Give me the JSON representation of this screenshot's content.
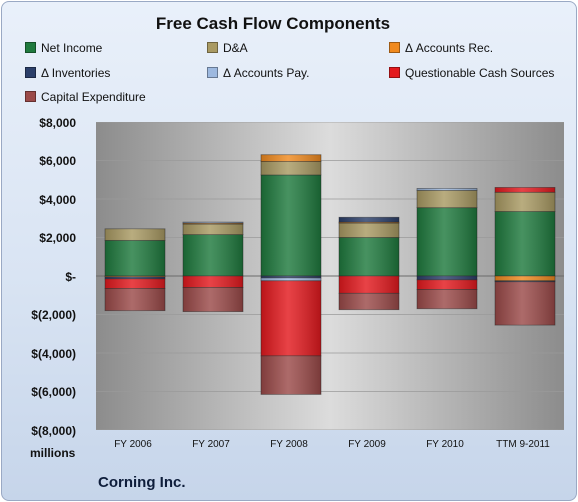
{
  "chart_data": {
    "type": "bar",
    "stacked": true,
    "title": "Free Cash Flow Components",
    "categories": [
      "FY 2006",
      "FY 2007",
      "FY 2008",
      "FY 2009",
      "FY 2010",
      "TTM 9-2011"
    ],
    "unit_label": "millions",
    "company": "Corning Inc.",
    "ylim": [
      -8000,
      8000
    ],
    "yticks": [
      "$8,000",
      "$6,000",
      "$4,000",
      "$2,000",
      "$-",
      "$(2,000)",
      "$(4,000)",
      "$(6,000)",
      "$(8,000)"
    ],
    "ytick_values": [
      8000,
      6000,
      4000,
      2000,
      0,
      -2000,
      -4000,
      -6000,
      -8000
    ],
    "grid": true,
    "legend_position": "top",
    "series": [
      {
        "name": "Net Income",
        "color": "#1f7a3e",
        "values": [
          1850,
          2150,
          5250,
          2000,
          3550,
          3350
        ]
      },
      {
        "name": "D&A",
        "color": "#a99a63",
        "values": [
          600,
          550,
          700,
          750,
          900,
          1000
        ]
      },
      {
        "name": "Δ Accounts Rec.",
        "color": "#f08a1f",
        "values": [
          -50,
          50,
          350,
          50,
          0,
          -250
        ]
      },
      {
        "name": "Δ Inventories",
        "color": "#2b3f6a",
        "values": [
          -100,
          0,
          -100,
          250,
          -200,
          -50
        ]
      },
      {
        "name": "Δ Accounts Pay.",
        "color": "#9db9e0",
        "values": [
          0,
          50,
          -150,
          0,
          100,
          0
        ]
      },
      {
        "name": "Questionable Cash Sources",
        "color": "#e3191e",
        "values": [
          -500,
          -600,
          -3900,
          -900,
          -500,
          250
        ]
      },
      {
        "name": "Capital Expenditure",
        "color": "#9b4a49",
        "values": [
          -1150,
          -1250,
          -2000,
          -850,
          -1000,
          -2250
        ]
      }
    ]
  }
}
